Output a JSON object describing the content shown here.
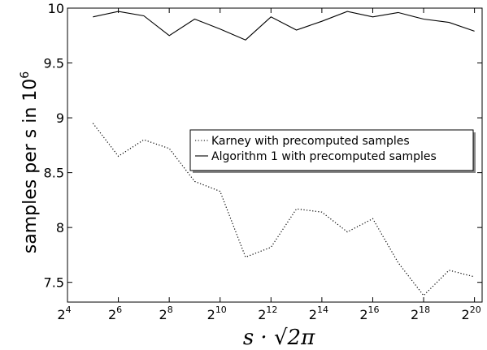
{
  "chart_data": {
    "type": "line",
    "x_base": 2,
    "xticks_exp": [
      "4",
      "6",
      "8",
      "10",
      "12",
      "14",
      "16",
      "18",
      "20"
    ],
    "xlim_exp": [
      4,
      20.3
    ],
    "yticks": [
      "7.5",
      "8",
      "8.5",
      "9",
      "9.5",
      "10"
    ],
    "ylim": [
      7.32,
      10.0
    ],
    "ylabel": "samples per s in 10",
    "ylabel_exp": "6",
    "xlabel": "s · √2π",
    "legend_position": "center-right",
    "series": [
      {
        "name": "Karney with precomputed samples",
        "style": "dotted",
        "x_exp": [
          5,
          6,
          7,
          8,
          9,
          10,
          11,
          12,
          13,
          14,
          15,
          16,
          17,
          18,
          19,
          20
        ],
        "values": [
          8.95,
          8.65,
          8.8,
          8.72,
          8.42,
          8.33,
          7.73,
          7.82,
          8.17,
          8.14,
          7.96,
          8.08,
          7.68,
          7.38,
          7.61,
          7.55
        ]
      },
      {
        "name": "Algorithm 1 with precomputed samples",
        "style": "solid",
        "x_exp": [
          5,
          6,
          7,
          8,
          9,
          10,
          11,
          12,
          13,
          14,
          15,
          16,
          17,
          18,
          19,
          20
        ],
        "values": [
          9.92,
          9.97,
          9.93,
          9.75,
          9.9,
          9.81,
          9.71,
          9.92,
          9.8,
          9.88,
          9.97,
          9.92,
          9.96,
          9.9,
          9.87,
          9.79
        ]
      }
    ]
  }
}
